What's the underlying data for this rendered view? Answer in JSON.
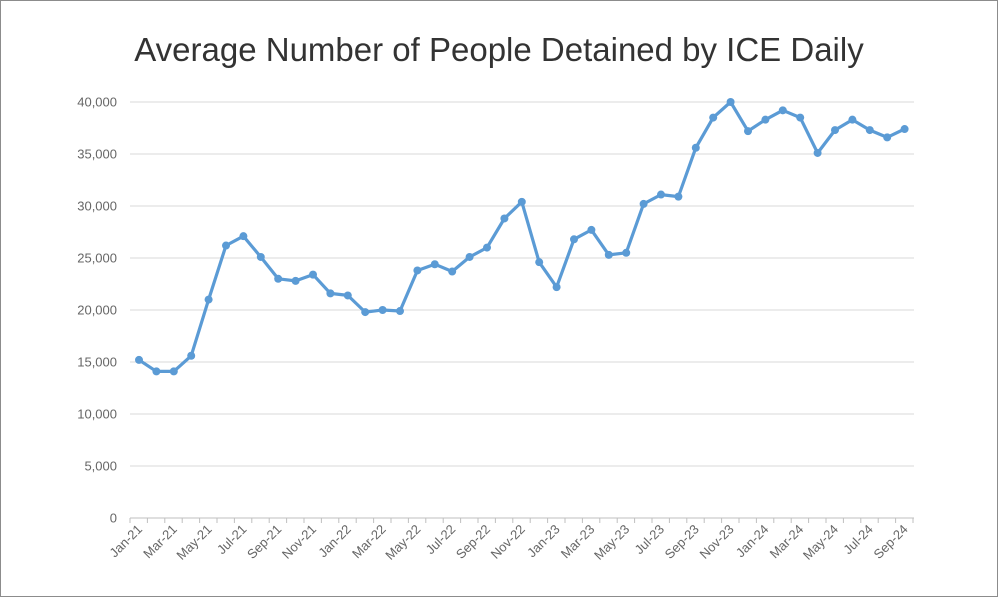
{
  "chart_data": {
    "type": "line",
    "title": "Average Number of People Detained by ICE Daily",
    "xlabel": "",
    "ylabel": "",
    "ylim": [
      0,
      40000
    ],
    "yticks": [
      0,
      5000,
      10000,
      15000,
      20000,
      25000,
      30000,
      35000,
      40000
    ],
    "ytick_labels": [
      "0",
      "5,000",
      "10,000",
      "15,000",
      "20,000",
      "25,000",
      "30,000",
      "35,000",
      "40,000"
    ],
    "xtick_labels": [
      "Jan-21",
      "Mar-21",
      "May-21",
      "Jul-21",
      "Sep-21",
      "Nov-21",
      "Jan-22",
      "Mar-22",
      "May-22",
      "Jul-22",
      "Sep-22",
      "Nov-22",
      "Jan-23",
      "Mar-23",
      "May-23",
      "Jul-23",
      "Sep-23",
      "Nov-23",
      "Jan-24",
      "Mar-24",
      "May-24",
      "Jul-24",
      "Sep-24"
    ],
    "grid": true,
    "color": "#5b9bd5",
    "categories": [
      "Jan-21",
      "Feb-21",
      "Mar-21",
      "Apr-21",
      "May-21",
      "Jun-21",
      "Jul-21",
      "Aug-21",
      "Sep-21",
      "Oct-21",
      "Nov-21",
      "Dec-21",
      "Jan-22",
      "Feb-22",
      "Mar-22",
      "Apr-22",
      "May-22",
      "Jun-22",
      "Jul-22",
      "Aug-22",
      "Sep-22",
      "Oct-22",
      "Nov-22",
      "Dec-22",
      "Jan-23",
      "Feb-23",
      "Mar-23",
      "Apr-23",
      "May-23",
      "Jun-23",
      "Jul-23",
      "Aug-23",
      "Sep-23",
      "Oct-23",
      "Nov-23",
      "Dec-23",
      "Jan-24",
      "Feb-24",
      "Mar-24",
      "Apr-24",
      "May-24",
      "Jun-24",
      "Jul-24",
      "Aug-24",
      "Sep-24"
    ],
    "values": [
      15200,
      14100,
      14100,
      15600,
      21000,
      26200,
      27100,
      25100,
      23000,
      22800,
      23400,
      21600,
      21400,
      19800,
      20000,
      19900,
      23800,
      24400,
      23700,
      25100,
      26000,
      28800,
      30400,
      24600,
      22200,
      26800,
      27700,
      25300,
      25500,
      30200,
      31100,
      30900,
      35600,
      38500,
      40000,
      37200,
      38300,
      39200,
      38500,
      35100,
      37300,
      38300,
      37300,
      36600,
      37400
    ]
  }
}
